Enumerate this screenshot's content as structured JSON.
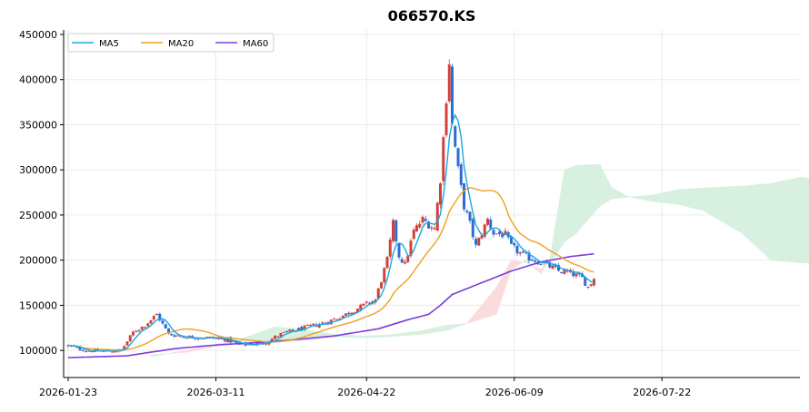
{
  "chart_data": {
    "type": "candlestick",
    "title": "066570.KS",
    "xlabel": "",
    "ylabel": "",
    "x_ticks": [
      "2026-01-23",
      "2026-03-11",
      "2026-04-22",
      "2026-06-09",
      "2026-07-22"
    ],
    "y_ticks": [
      "100000",
      "150000",
      "200000",
      "250000",
      "300000",
      "350000",
      "400000",
      "450000"
    ],
    "ylim": [
      70000,
      455000
    ],
    "grid": true,
    "legend": {
      "position": "top-left",
      "entries": [
        "MA5",
        "MA20",
        "MA60"
      ]
    },
    "colors": {
      "up": "#d0423b",
      "down": "#2e6bd2",
      "ma5": "#1ca7e0",
      "ma20": "#f0a020",
      "ma60": "#7c3ddb",
      "cloud_bull": "#d8f0df",
      "cloud_bear": "#fbdcdc"
    },
    "price_anchors": [
      [
        0,
        105000
      ],
      [
        6,
        100000
      ],
      [
        12,
        99000
      ],
      [
        18,
        100000
      ],
      [
        22,
        120000
      ],
      [
        26,
        128000
      ],
      [
        30,
        140000
      ],
      [
        34,
        118000
      ],
      [
        40,
        115000
      ],
      [
        48,
        114000
      ],
      [
        54,
        112000
      ],
      [
        58,
        106000
      ],
      [
        66,
        108000
      ],
      [
        72,
        118000
      ],
      [
        80,
        125000
      ],
      [
        88,
        132000
      ],
      [
        94,
        140000
      ],
      [
        100,
        150000
      ],
      [
        104,
        156000
      ],
      [
        108,
        200000
      ],
      [
        110,
        240000
      ],
      [
        112,
        205000
      ],
      [
        114,
        195000
      ],
      [
        117,
        232000
      ],
      [
        120,
        245000
      ],
      [
        124,
        235000
      ],
      [
        126,
        290000
      ],
      [
        128,
        380000
      ],
      [
        129,
        420000
      ],
      [
        130,
        350000
      ],
      [
        132,
        300000
      ],
      [
        134,
        260000
      ],
      [
        136,
        240000
      ],
      [
        138,
        215000
      ],
      [
        142,
        245000
      ],
      [
        144,
        230000
      ],
      [
        148,
        228000
      ],
      [
        150,
        215000
      ],
      [
        154,
        205000
      ],
      [
        158,
        200000
      ],
      [
        162,
        195000
      ],
      [
        166,
        188000
      ],
      [
        170,
        186000
      ],
      [
        174,
        180000
      ],
      [
        176,
        170000
      ],
      [
        178,
        180000
      ]
    ],
    "ma60_anchors": [
      [
        0,
        92000
      ],
      [
        20,
        94000
      ],
      [
        30,
        99000
      ],
      [
        36,
        102000
      ],
      [
        50,
        106000
      ],
      [
        70,
        110000
      ],
      [
        90,
        116000
      ],
      [
        105,
        124000
      ],
      [
        115,
        134000
      ],
      [
        122,
        140000
      ],
      [
        126,
        150000
      ],
      [
        130,
        162000
      ],
      [
        140,
        175000
      ],
      [
        150,
        188000
      ],
      [
        160,
        198000
      ],
      [
        170,
        204000
      ],
      [
        178,
        207000
      ]
    ],
    "span_a_anchors": [
      [
        28,
        95000
      ],
      [
        40,
        98000
      ],
      [
        55,
        108000
      ],
      [
        63,
        118000
      ],
      [
        70,
        126000
      ],
      [
        78,
        124000
      ],
      [
        90,
        118000
      ],
      [
        100,
        116000
      ],
      [
        108,
        117000
      ],
      [
        120,
        122000
      ],
      [
        128,
        128000
      ],
      [
        135,
        130000
      ],
      [
        145,
        140000
      ],
      [
        150,
        190000
      ],
      [
        155,
        200000
      ],
      [
        160,
        185000
      ],
      [
        163,
        200000
      ],
      [
        165,
        240000
      ],
      [
        168,
        300000
      ],
      [
        172,
        305000
      ],
      [
        180,
        306000
      ],
      [
        184,
        280000
      ],
      [
        190,
        270000
      ],
      [
        198,
        272000
      ],
      [
        206,
        278000
      ],
      [
        215,
        280000
      ],
      [
        228,
        282000
      ],
      [
        238,
        285000
      ],
      [
        248,
        292000
      ],
      [
        252,
        290000
      ]
    ],
    "span_b_anchors": [
      [
        28,
        93000
      ],
      [
        40,
        100000
      ],
      [
        55,
        110000
      ],
      [
        63,
        110000
      ],
      [
        70,
        110000
      ],
      [
        78,
        110000
      ],
      [
        90,
        115000
      ],
      [
        100,
        114000
      ],
      [
        108,
        115000
      ],
      [
        120,
        118000
      ],
      [
        128,
        122000
      ],
      [
        135,
        130000
      ],
      [
        145,
        170000
      ],
      [
        150,
        200000
      ],
      [
        155,
        197000
      ],
      [
        160,
        190000
      ],
      [
        163,
        200000
      ],
      [
        165,
        205000
      ],
      [
        168,
        220000
      ],
      [
        172,
        230000
      ],
      [
        180,
        260000
      ],
      [
        184,
        268000
      ],
      [
        190,
        270000
      ],
      [
        198,
        265000
      ],
      [
        206,
        262000
      ],
      [
        215,
        255000
      ],
      [
        228,
        230000
      ],
      [
        238,
        200000
      ],
      [
        248,
        197000
      ],
      [
        252,
        197000
      ]
    ],
    "n_candles": 179,
    "x_span": 253
  }
}
